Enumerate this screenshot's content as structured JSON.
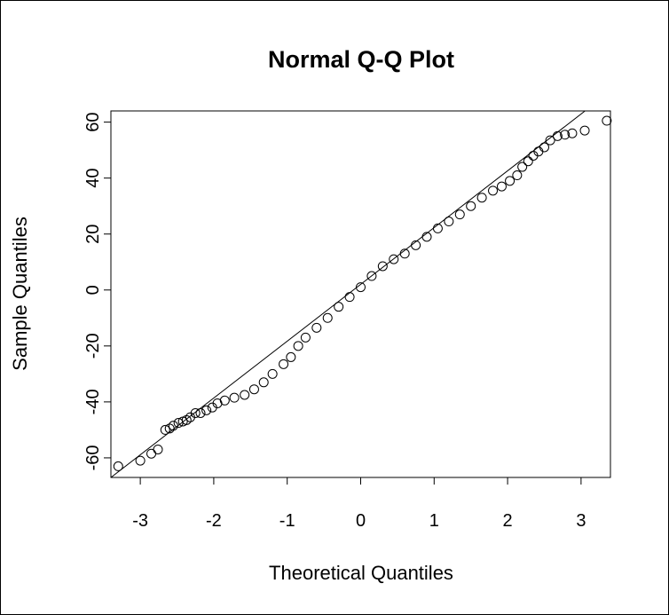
{
  "chart_data": {
    "type": "scatter",
    "title": "Normal Q-Q Plot",
    "xlabel": "Theoretical Quantiles",
    "ylabel": "Sample Quantiles",
    "xlim": [
      -3.4,
      3.4
    ],
    "ylim": [
      -67,
      64
    ],
    "xticks": [
      -3,
      -2,
      -1,
      0,
      1,
      2,
      3
    ],
    "xtick_labels": [
      "-3",
      "-2",
      "-1",
      "0",
      "1",
      "2",
      "3"
    ],
    "yticks": [
      -60,
      -40,
      -20,
      0,
      20,
      40,
      60
    ],
    "ytick_labels": [
      "-60",
      "-40",
      "-20",
      "0",
      "20",
      "40",
      "60"
    ],
    "grid": false,
    "reference_line": {
      "intercept": 2.0,
      "slope": 20.3
    },
    "marker": "open-circle",
    "colors": {
      "points": "#000000",
      "line": "#000000"
    },
    "points": [
      [
        -3.3,
        -63.0
      ],
      [
        -3.0,
        -61.0
      ],
      [
        -2.85,
        -58.5
      ],
      [
        -2.76,
        -57.0
      ],
      [
        -2.66,
        -50.0
      ],
      [
        -2.6,
        -49.5
      ],
      [
        -2.55,
        -48.5
      ],
      [
        -2.48,
        -47.5
      ],
      [
        -2.42,
        -47.0
      ],
      [
        -2.37,
        -46.5
      ],
      [
        -2.32,
        -45.5
      ],
      [
        -2.25,
        -44.0
      ],
      [
        -2.18,
        -44.0
      ],
      [
        -2.1,
        -43.0
      ],
      [
        -2.02,
        -42.0
      ],
      [
        -1.95,
        -40.5
      ],
      [
        -1.85,
        -39.5
      ],
      [
        -1.72,
        -38.5
      ],
      [
        -1.58,
        -37.5
      ],
      [
        -1.45,
        -35.5
      ],
      [
        -1.32,
        -33.0
      ],
      [
        -1.2,
        -30.0
      ],
      [
        -1.05,
        -26.5
      ],
      [
        -0.95,
        -24.0
      ],
      [
        -0.85,
        -20.0
      ],
      [
        -0.75,
        -17.0
      ],
      [
        -0.6,
        -13.5
      ],
      [
        -0.45,
        -10.0
      ],
      [
        -0.3,
        -6.0
      ],
      [
        -0.15,
        -2.5
      ],
      [
        0.0,
        1.0
      ],
      [
        0.15,
        5.0
      ],
      [
        0.3,
        8.5
      ],
      [
        0.45,
        11.0
      ],
      [
        0.6,
        13.0
      ],
      [
        0.75,
        16.0
      ],
      [
        0.9,
        19.0
      ],
      [
        1.05,
        22.0
      ],
      [
        1.2,
        24.5
      ],
      [
        1.35,
        27.0
      ],
      [
        1.5,
        30.0
      ],
      [
        1.65,
        33.0
      ],
      [
        1.8,
        35.5
      ],
      [
        1.92,
        37.0
      ],
      [
        2.03,
        39.0
      ],
      [
        2.13,
        41.0
      ],
      [
        2.2,
        44.0
      ],
      [
        2.28,
        46.0
      ],
      [
        2.35,
        48.0
      ],
      [
        2.42,
        49.5
      ],
      [
        2.5,
        51.0
      ],
      [
        2.58,
        53.5
      ],
      [
        2.68,
        55.0
      ],
      [
        2.78,
        55.5
      ],
      [
        2.88,
        56.0
      ],
      [
        3.05,
        57.0
      ],
      [
        3.35,
        60.5
      ]
    ]
  }
}
